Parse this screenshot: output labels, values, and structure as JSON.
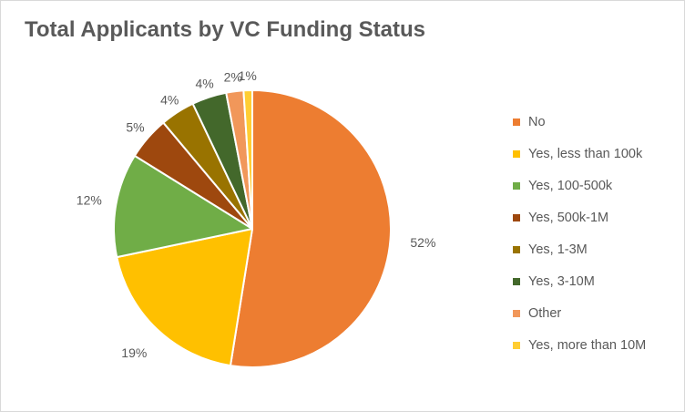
{
  "chart_data": {
    "type": "pie",
    "title": "Total Applicants by VC Funding Status",
    "categories": [
      "No",
      "Yes, less than 100k",
      "Yes, 100-500k",
      "Yes, 500k-1M",
      "Yes, 1-3M",
      "Yes, 3-10M",
      "Other",
      "Yes, more than 10M"
    ],
    "values": [
      52,
      19,
      12,
      5,
      4,
      4,
      2,
      1
    ],
    "value_labels": [
      "52%",
      "19%",
      "12%",
      "5%",
      "4%",
      "4%",
      "2%",
      "1%"
    ],
    "colors": [
      "#ED7D31",
      "#FFC000",
      "#70AD47",
      "#9E480E",
      "#997300",
      "#43682B",
      "#F1975A",
      "#FFCD33"
    ],
    "legend_position": "right"
  }
}
